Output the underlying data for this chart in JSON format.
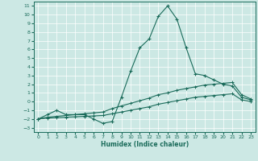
{
  "xlabel": "Humidex (Indice chaleur)",
  "xlim": [
    -0.5,
    23.5
  ],
  "ylim": [
    -3.5,
    11.5
  ],
  "xticks": [
    0,
    1,
    2,
    3,
    4,
    5,
    6,
    7,
    8,
    9,
    10,
    11,
    12,
    13,
    14,
    15,
    16,
    17,
    18,
    19,
    20,
    21,
    22,
    23
  ],
  "yticks": [
    -3,
    -2,
    -1,
    0,
    1,
    2,
    3,
    4,
    5,
    6,
    7,
    8,
    9,
    10,
    11
  ],
  "bg_color": "#cce8e4",
  "line_color": "#1a6b5a",
  "grid_color": "#b0d8d4",
  "line1_x": [
    0,
    1,
    2,
    3,
    4,
    5,
    6,
    7,
    8,
    9,
    10,
    11,
    12,
    13,
    14,
    15,
    16,
    17,
    18,
    19,
    20,
    21,
    22,
    23
  ],
  "line1_y": [
    -2,
    -1.5,
    -1,
    -1.5,
    -1.5,
    -1.5,
    -2,
    -2.5,
    -2.3,
    0.5,
    3.5,
    6.2,
    7.2,
    9.8,
    11,
    9.5,
    6.2,
    3.2,
    3.0,
    2.5,
    2.0,
    1.8,
    0.5,
    0.2
  ],
  "line2_x": [
    0,
    1,
    2,
    3,
    4,
    5,
    6,
    7,
    8,
    9,
    10,
    11,
    12,
    13,
    14,
    15,
    16,
    17,
    18,
    19,
    20,
    21,
    22,
    23
  ],
  "line2_y": [
    -2,
    -1.8,
    -1.7,
    -1.6,
    -1.5,
    -1.4,
    -1.3,
    -1.2,
    -0.8,
    -0.5,
    -0.2,
    0.1,
    0.4,
    0.8,
    1.0,
    1.3,
    1.5,
    1.7,
    1.9,
    2.0,
    2.1,
    2.2,
    0.8,
    0.3
  ],
  "line3_x": [
    0,
    1,
    2,
    3,
    4,
    5,
    6,
    7,
    8,
    9,
    10,
    11,
    12,
    13,
    14,
    15,
    16,
    17,
    18,
    19,
    20,
    21,
    22,
    23
  ],
  "line3_y": [
    -2,
    -1.9,
    -1.85,
    -1.8,
    -1.75,
    -1.7,
    -1.65,
    -1.6,
    -1.4,
    -1.2,
    -1.0,
    -0.8,
    -0.6,
    -0.3,
    -0.1,
    0.1,
    0.3,
    0.5,
    0.6,
    0.7,
    0.8,
    0.9,
    0.2,
    0.0
  ]
}
